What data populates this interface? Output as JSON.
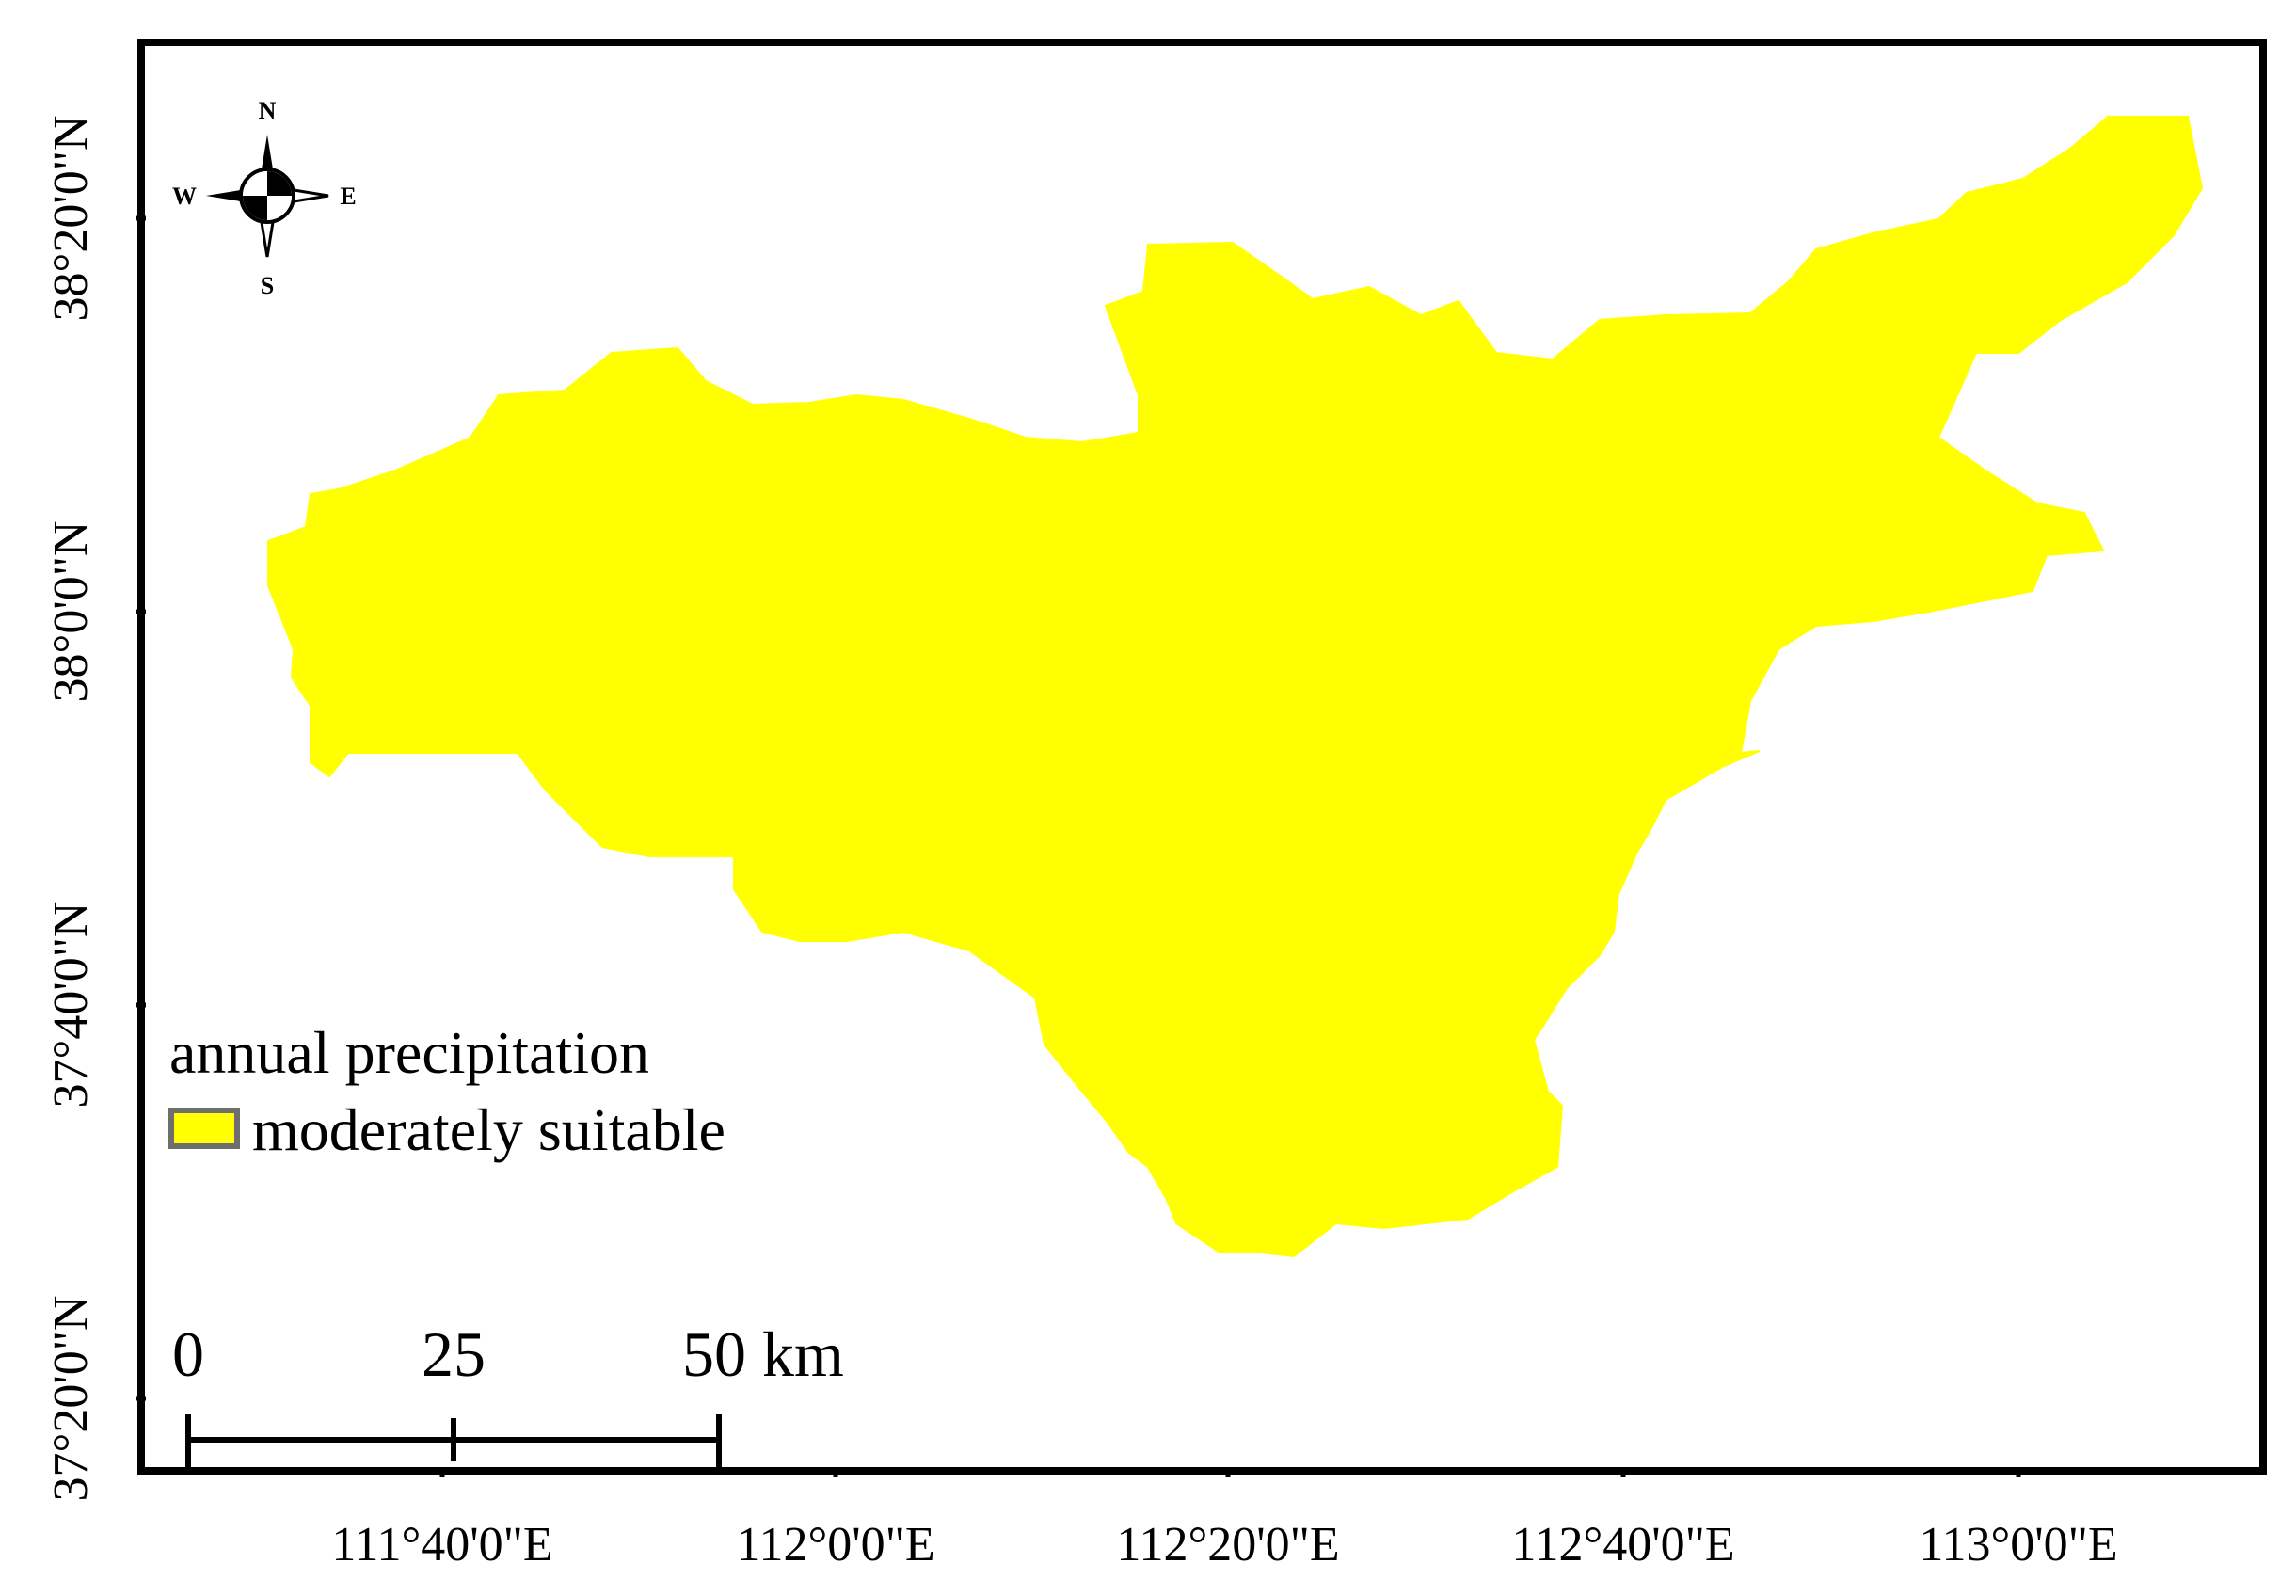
{
  "map": {
    "region_color": "#ffff00",
    "frame_color": "#000000",
    "background_color": "#ffffff"
  },
  "axes": {
    "longitude_ticks": [
      "111°40'0\"E",
      "112°0'0\"E",
      "112°20'0\"E",
      "112°40'0\"E",
      "113°0'0\"E"
    ],
    "latitude_ticks": [
      "38°20'0\"N",
      "38°0'0\"N",
      "37°40'0\"N",
      "37°20'0\"N"
    ]
  },
  "compass": {
    "icon": "north-arrow-compass-rose",
    "north": "N",
    "south": "S",
    "east": "E",
    "west": "W"
  },
  "legend": {
    "title": "annual precipitation",
    "items": [
      {
        "label": "moderately suitable",
        "color": "#ffff00",
        "outline": "#6e6e6e"
      }
    ]
  },
  "scale_bar": {
    "labels": [
      "0",
      "25",
      "50 km"
    ]
  }
}
